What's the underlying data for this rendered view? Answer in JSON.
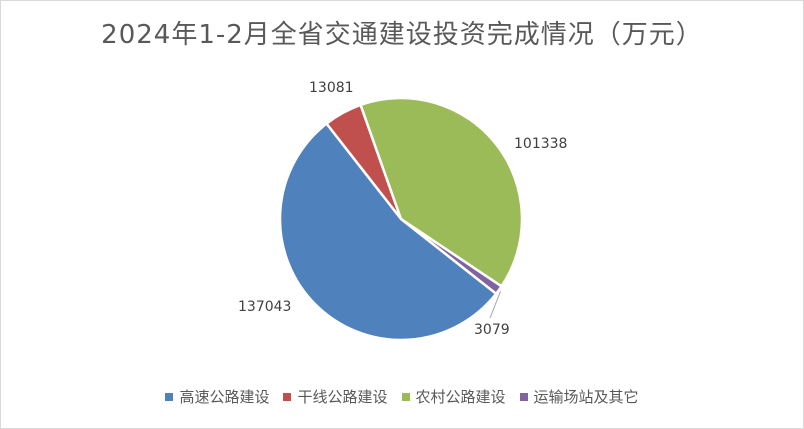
{
  "chart_data": {
    "type": "pie",
    "title": "2024年1-2月全省交通建设投资完成情况（万元）",
    "categories": [
      "高速公路建设",
      "干线公路建设",
      "农村公路建设",
      "运输场站及其它"
    ],
    "values": [
      137043,
      13081,
      101338,
      3079
    ],
    "colors": [
      "#4f81bd",
      "#c0504d",
      "#9bbb59",
      "#8064a2"
    ],
    "legend_position": "bottom",
    "start_category": "干线公路建设"
  }
}
